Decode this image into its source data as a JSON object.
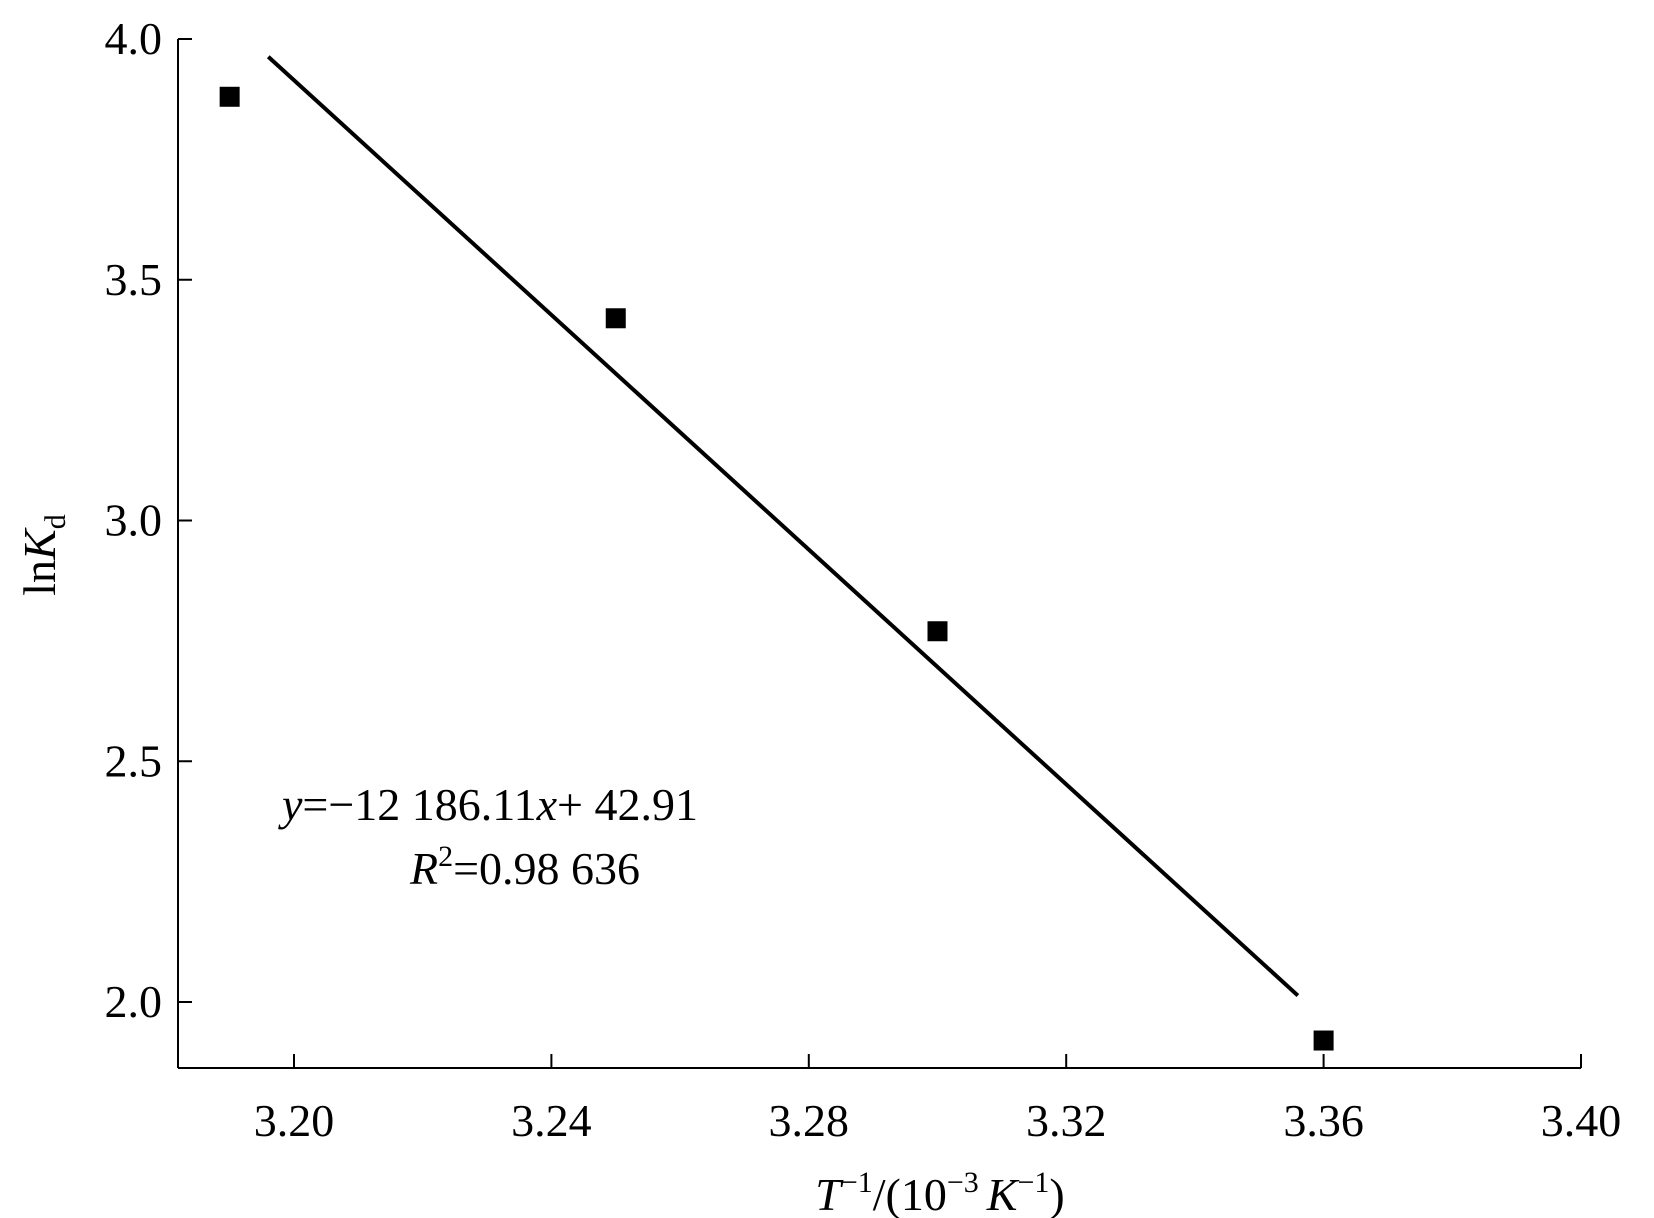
{
  "chart_data": {
    "type": "scatter",
    "x_ticks": [
      "3.20",
      "3.24",
      "3.28",
      "3.32",
      "3.36",
      "3.40"
    ],
    "y_ticks": [
      "2.0",
      "2.5",
      "3.0",
      "3.5",
      "4.0"
    ],
    "xlim": [
      3.182,
      3.4
    ],
    "ylim": [
      1.85,
      4.0
    ],
    "xlabel": {
      "var": "T",
      "var_sup": "−1",
      "mid": "/(10",
      "exp": "−3",
      "unit": "K",
      "unit_sup": "−1",
      "tail": ")"
    },
    "ylabel": {
      "prefix": "ln",
      "var": "K",
      "sub": "d"
    },
    "series": [
      {
        "marker": "square",
        "color": "#000000",
        "points": [
          {
            "x": 3.19,
            "y": 3.88
          },
          {
            "x": 3.25,
            "y": 3.42
          },
          {
            "x": 3.3,
            "y": 2.77
          },
          {
            "x": 3.36,
            "y": 1.92
          }
        ]
      }
    ],
    "fit_line": {
      "slope": -12.18611,
      "intercept": 42.91,
      "x_range": [
        3.196,
        3.356
      ],
      "color": "#000000"
    },
    "annotation": {
      "eq_y": "y",
      "eq_mid": "=−12 186.11",
      "eq_x": "x",
      "eq_tail": "+ 42.91",
      "r_var": "R",
      "r_sup": "2",
      "r_val": "=0.98 636"
    },
    "grid": false,
    "legend": "none"
  }
}
